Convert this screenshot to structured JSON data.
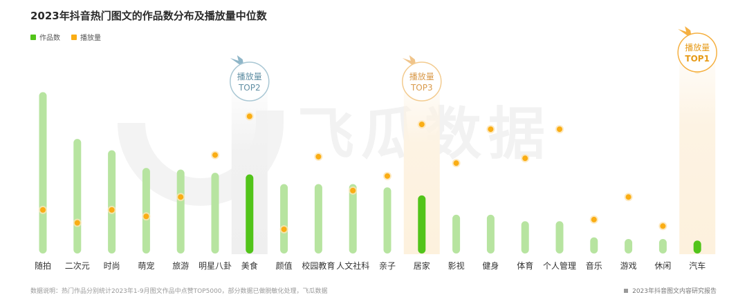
{
  "title": "2023年抖音热门图文的作品数分布及播放量中位数",
  "legend": [
    {
      "name": "作品数",
      "color": "#52c41a"
    },
    {
      "name": "播放量",
      "color": "#faad14"
    }
  ],
  "watermark": "飞瓜数据",
  "footer": {
    "note": "数据说明：热门作品分别统计2023年1-9月图文作品中点赞TOP5000，部分数据已做脱敏化处理，飞瓜数据",
    "source": "2023年抖音图文内容研究报告"
  },
  "chart_data": {
    "type": "bar",
    "title": "2023年抖音热门图文的作品数分布及播放量中位数",
    "categories": [
      "随拍",
      "二次元",
      "时尚",
      "萌宠",
      "旅游",
      "明星八卦",
      "美食",
      "颜值",
      "校园教育",
      "人文社科",
      "亲子",
      "居家",
      "影视",
      "健身",
      "体育",
      "个人管理",
      "音乐",
      "游戏",
      "休闲",
      "汽车"
    ],
    "series": [
      {
        "name": "作品数",
        "type": "bar",
        "values": [
          100,
          71,
          64,
          53,
          52,
          50,
          49,
          43,
          43,
          43,
          41,
          36,
          24,
          24,
          20,
          20,
          10,
          9,
          9,
          8
        ]
      },
      {
        "name": "播放量",
        "type": "scatter",
        "values": [
          27,
          19,
          27,
          23,
          35,
          61,
          85,
          15,
          60,
          39,
          48,
          80,
          56,
          77,
          59,
          77,
          21,
          35,
          17,
          114
        ]
      }
    ],
    "highlight_categories": [
      "美食",
      "居家",
      "汽车"
    ],
    "top_labels": [
      {
        "category": "汽车",
        "line1": "播放量",
        "line2": "TOP1"
      },
      {
        "category": "美食",
        "line1": "播放量",
        "line2": "TOP2"
      },
      {
        "category": "居家",
        "line1": "播放量",
        "line2": "TOP3"
      }
    ],
    "ylim": [
      0,
      125
    ],
    "grid": false,
    "legend_position": "top-left"
  }
}
